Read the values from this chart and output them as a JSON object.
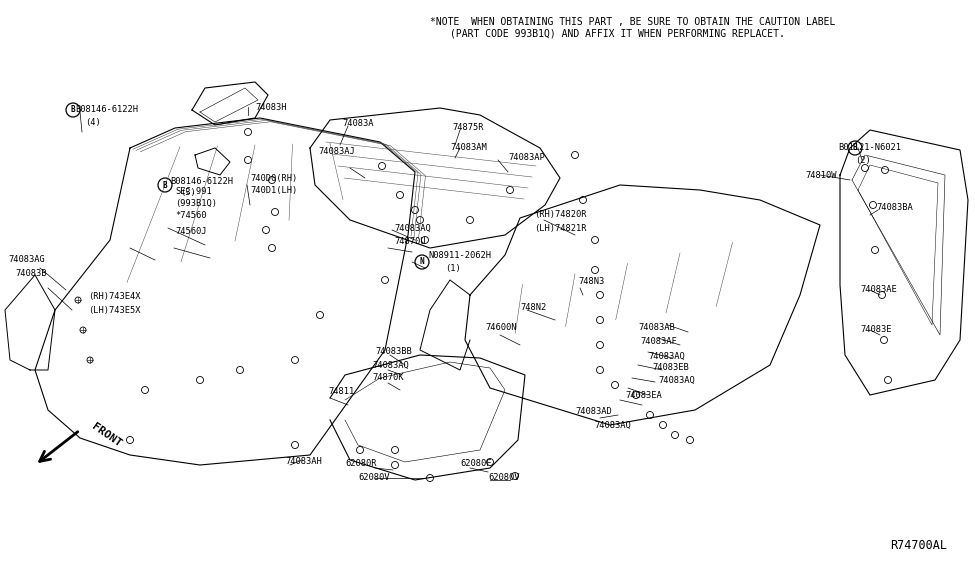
{
  "background_color": "#ffffff",
  "note_line1": "*NOTE  WHEN OBTAINING THIS PART , BE SURE TO OBTAIN THE CAUTION LABEL",
  "note_line2": "(PART CODE 993B1Q) AND AFFIX IT WHEN PERFORMING REPLACET.",
  "part_number_bottom_right": "R74700AL",
  "font_size_note": 7.0,
  "font_size_part_number": 8.5,
  "font_size_labels": 6.3,
  "text_color": "#000000",
  "line_color": "#000000"
}
